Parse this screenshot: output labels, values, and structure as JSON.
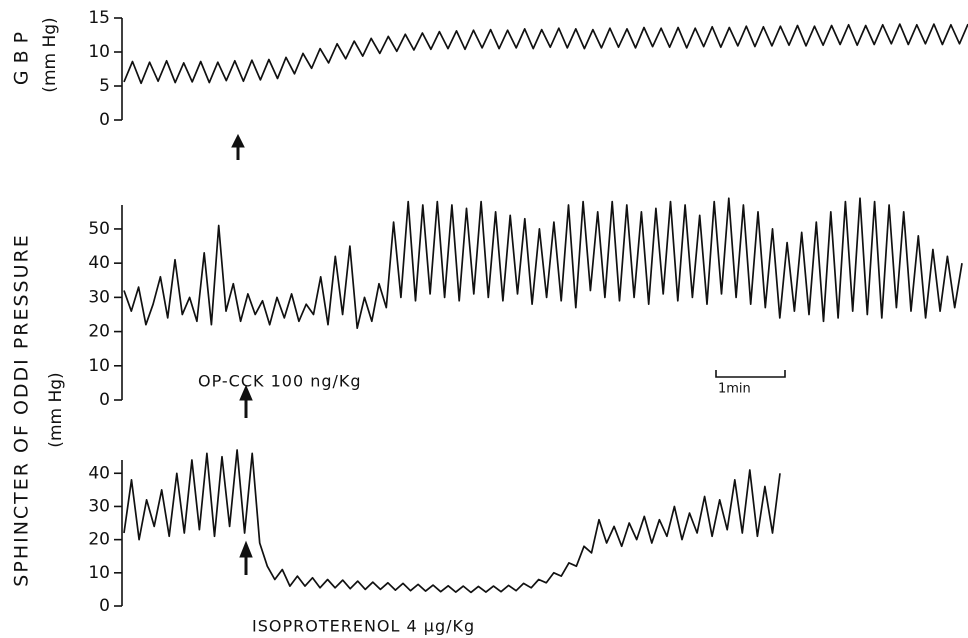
{
  "chart_data": [
    {
      "type": "line",
      "y_label": "GBP",
      "y_unit": "(mm Hg)",
      "color": "#111111",
      "ylim": [
        0,
        15
      ],
      "yticks": [
        0,
        5,
        10,
        15
      ],
      "values": [
        5.6,
        8.6,
        5.4,
        8.5,
        5.7,
        8.7,
        5.5,
        8.4,
        5.6,
        8.6,
        5.5,
        8.5,
        5.8,
        8.7,
        5.7,
        8.8,
        5.9,
        8.9,
        6.1,
        9.2,
        6.8,
        9.8,
        7.6,
        10.5,
        8.4,
        11.2,
        9.0,
        11.6,
        9.4,
        12.0,
        9.8,
        12.3,
        10.1,
        12.6,
        10.3,
        12.8,
        10.4,
        13.0,
        10.5,
        13.1,
        10.4,
        13.2,
        10.6,
        13.3,
        10.5,
        13.2,
        10.6,
        13.4,
        10.5,
        13.3,
        10.7,
        13.5,
        10.6,
        13.4,
        10.5,
        13.3,
        10.6,
        13.5,
        10.7,
        13.4,
        10.6,
        13.6,
        10.8,
        13.5,
        10.7,
        13.6,
        10.6,
        13.5,
        10.8,
        13.7,
        10.7,
        13.6,
        10.9,
        13.8,
        10.8,
        13.7,
        10.9,
        13.8,
        11.0,
        13.9,
        10.9,
        13.8,
        11.0,
        13.9,
        11.1,
        14.0,
        11.0,
        13.9,
        11.1,
        14.0,
        11.2,
        14.1,
        11.1,
        14.0,
        11.2,
        14.1,
        11.1,
        14.0,
        11.2,
        14.1
      ]
    },
    {
      "type": "line",
      "y_label": "SPHINCTER OF ODDI PRESSURE",
      "y_unit": "(mm Hg)",
      "color": "#111111",
      "annotation": "OP-CCK 100 ng/Kg",
      "scale_bar_label": "1min",
      "ylim": [
        0,
        57
      ],
      "yticks": [
        0,
        10,
        20,
        30,
        40,
        50
      ],
      "values": [
        32,
        26,
        33,
        22,
        28,
        36,
        24,
        41,
        25,
        30,
        23,
        43,
        22,
        51,
        26,
        34,
        23,
        31,
        25,
        29,
        22,
        30,
        24,
        31,
        23,
        28,
        25,
        36,
        22,
        42,
        25,
        45,
        21,
        30,
        23,
        34,
        27,
        52,
        30,
        58,
        29,
        57,
        31,
        58,
        30,
        57,
        29,
        56,
        31,
        58,
        30,
        55,
        29,
        54,
        31,
        53,
        28,
        50,
        30,
        52,
        29,
        57,
        27,
        58,
        32,
        55,
        30,
        58,
        29,
        57,
        30,
        55,
        28,
        56,
        31,
        58,
        29,
        57,
        30,
        54,
        28,
        58,
        31,
        59,
        30,
        57,
        28,
        55,
        27,
        50,
        24,
        46,
        26,
        49,
        25,
        52,
        23,
        55,
        24,
        58,
        26,
        59,
        25,
        58,
        24,
        57,
        27,
        55,
        26,
        48,
        24,
        44,
        26,
        42,
        27,
        40
      ]
    },
    {
      "type": "line",
      "color": "#111111",
      "annotation": "ISOPROTERENOL 4 μg/Kg",
      "ylim": [
        0,
        44
      ],
      "yticks": [
        0,
        10,
        20,
        30,
        40
      ],
      "values": [
        22,
        38,
        20,
        32,
        24,
        35,
        21,
        40,
        22,
        44,
        23,
        46,
        21,
        45,
        24,
        47,
        22,
        46,
        19,
        12,
        8,
        11,
        6,
        9,
        6,
        8.5,
        5.5,
        8,
        5.5,
        7.8,
        5.2,
        7.5,
        5,
        7.2,
        5,
        7,
        4.8,
        6.8,
        4.6,
        6.5,
        4.5,
        6.3,
        4.3,
        6.1,
        4.2,
        6,
        4.1,
        5.9,
        4.2,
        6,
        4.3,
        6.2,
        4.6,
        6.8,
        5.5,
        8,
        7,
        10,
        9,
        13,
        12,
        18,
        16,
        26,
        19,
        24,
        18,
        25,
        20,
        27,
        19,
        26,
        21,
        30,
        20,
        28,
        22,
        33,
        21,
        32,
        23,
        38,
        22,
        41,
        21,
        36,
        22,
        40
      ]
    }
  ]
}
